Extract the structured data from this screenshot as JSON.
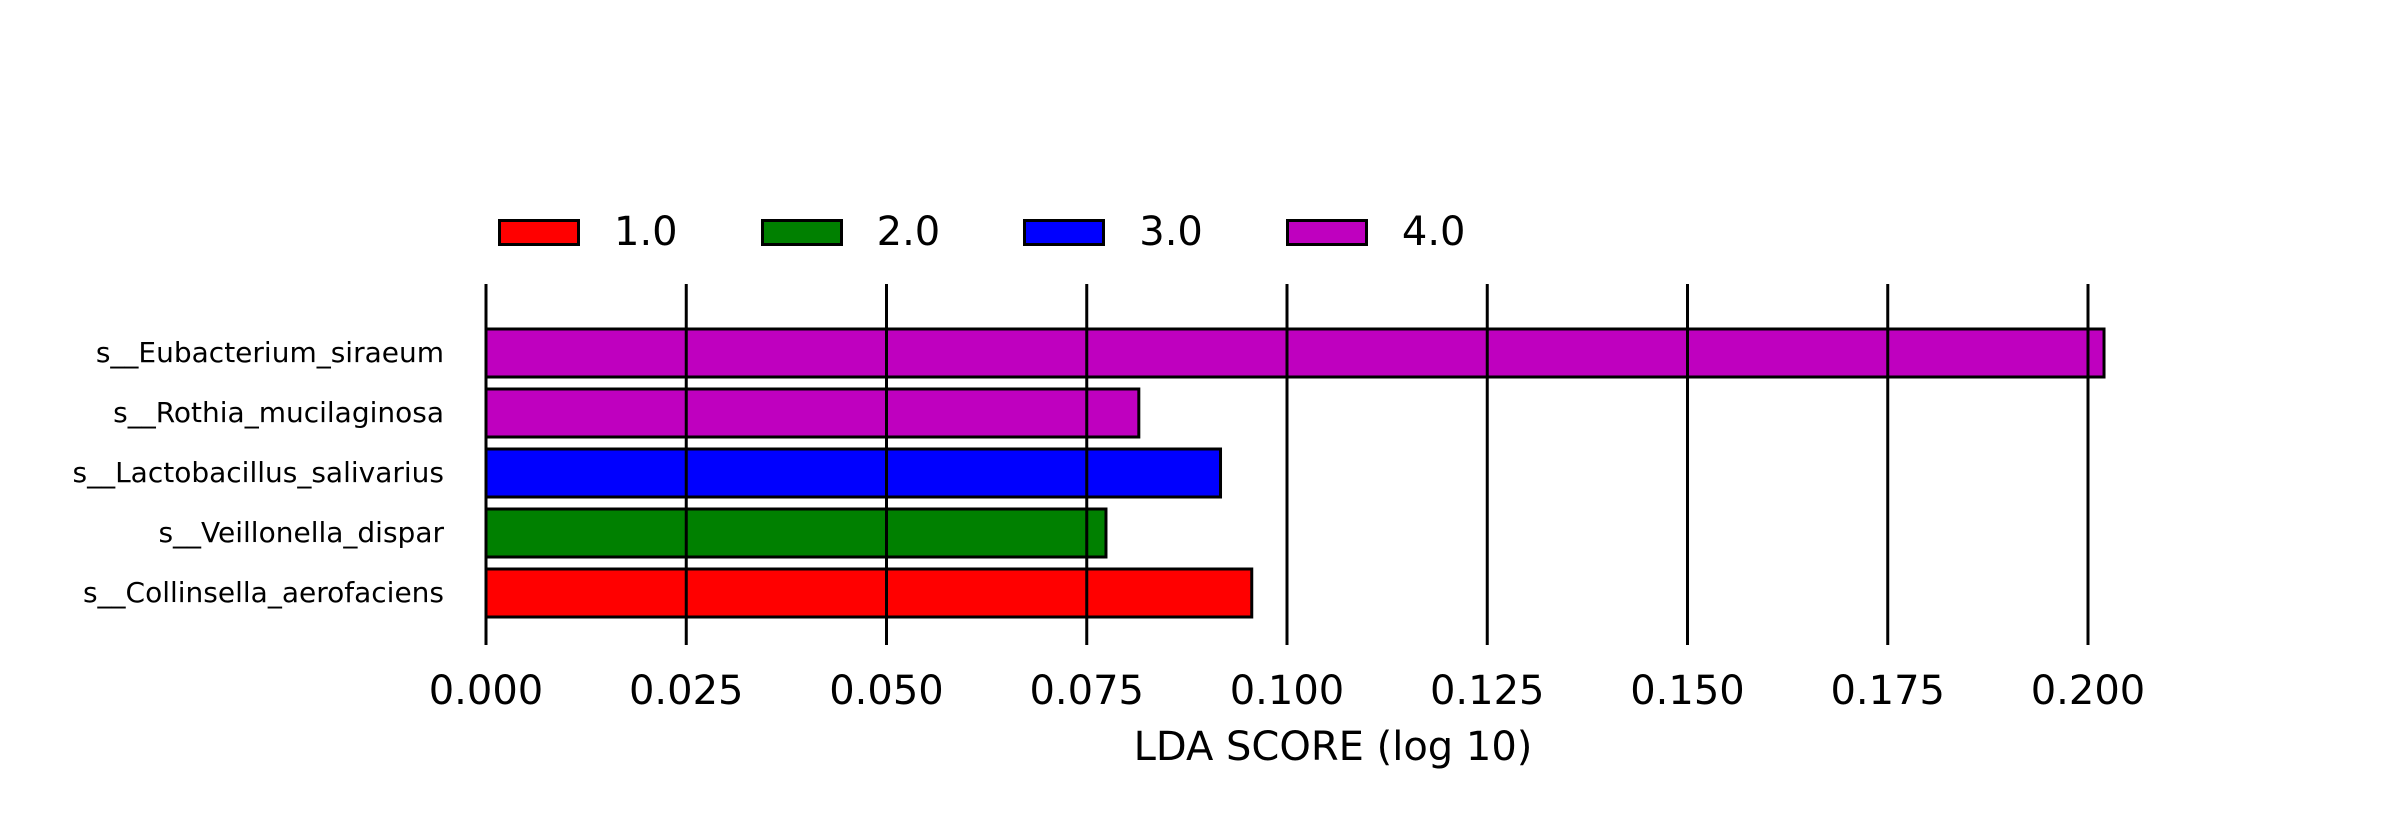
{
  "chart_data": {
    "type": "bar",
    "orientation": "horizontal",
    "xlabel": "LDA SCORE (log 10)",
    "xlim": [
      0,
      0.2
    ],
    "x_ticks": [
      "0.000",
      "0.025",
      "0.050",
      "0.075",
      "0.100",
      "0.125",
      "0.150",
      "0.175",
      "0.200"
    ],
    "grid": "vertical lines at each x tick",
    "legend_position": "top-left, above plot",
    "legend": [
      {
        "label": "1.0",
        "color": "#ff0000"
      },
      {
        "label": "2.0",
        "color": "#008000"
      },
      {
        "label": "3.0",
        "color": "#0000ff"
      },
      {
        "label": "4.0",
        "color": "#bf00bf"
      }
    ],
    "bars": [
      {
        "label": "s__Eubacterium_siraeum",
        "value": 0.202,
        "class": "4.0",
        "color": "#bf00bf"
      },
      {
        "label": "s__Rothia_mucilaginosa",
        "value": 0.0815,
        "class": "4.0",
        "color": "#bf00bf"
      },
      {
        "label": "s__Lactobacillus_salivarius",
        "value": 0.0917,
        "class": "3.0",
        "color": "#0000ff"
      },
      {
        "label": "s__Veillonella_dispar",
        "value": 0.0774,
        "class": "2.0",
        "color": "#008000"
      },
      {
        "label": "s__Collinsella_aerofaciens",
        "value": 0.0956,
        "class": "1.0",
        "color": "#ff0000"
      }
    ]
  }
}
